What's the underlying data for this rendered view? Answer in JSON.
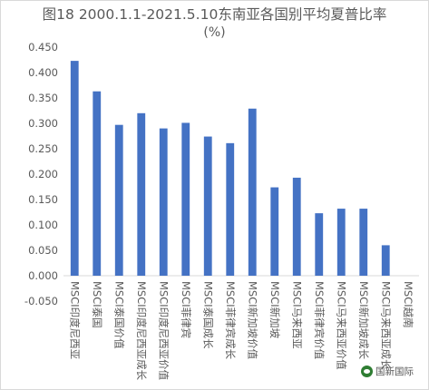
{
  "chart_data": {
    "type": "bar",
    "title_line1": "图18 2000.1.1-2021.5.10东南亚各国别平均夏普比率",
    "title_line2": "(%)",
    "categories": [
      "MSCI印度尼西亚",
      "MSCI泰国",
      "MSCI泰国价值",
      "MSCI印度尼西亚成长",
      "MSCI印度尼西亚价值",
      "MSCI菲律宾",
      "MSCI泰国成长",
      "MSCI菲律宾成长",
      "MSCI新加坡价值",
      "MSCI新加坡",
      "MSCI马来西亚",
      "MSCI菲律宾价值",
      "MSCI马来西亚价值",
      "MSCI新加坡成长",
      "MSCI马来西亚成长",
      "MSCI越南"
    ],
    "values": [
      0.423,
      0.363,
      0.297,
      0.32,
      0.29,
      0.301,
      0.274,
      0.261,
      0.329,
      0.174,
      0.193,
      0.123,
      0.132,
      0.132,
      0.06,
      0.0
    ],
    "ylim": [
      -0.05,
      0.45
    ],
    "yticks": [
      "-0.050",
      "0.000",
      "0.050",
      "0.100",
      "0.150",
      "0.200",
      "0.250",
      "0.300",
      "0.350",
      "0.400",
      "0.450"
    ],
    "xlabel": "",
    "ylabel": "",
    "grid": false,
    "legend": "none",
    "bar_color": "#4472c4"
  },
  "watermark": {
    "text": "国新国际"
  }
}
